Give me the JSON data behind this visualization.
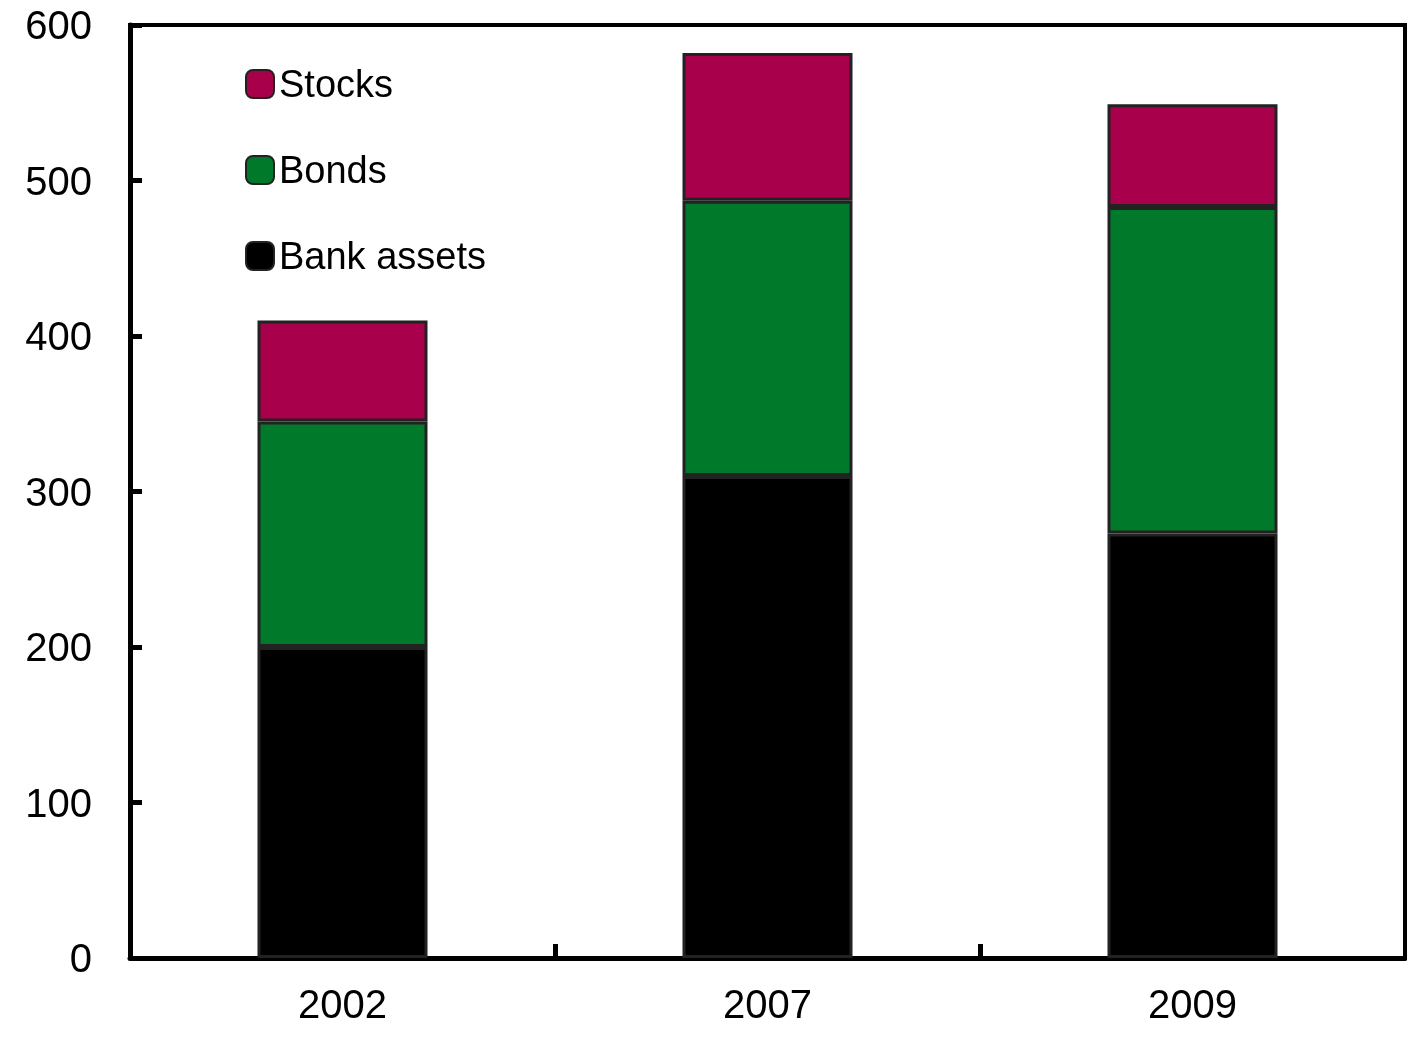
{
  "chart_data": {
    "type": "bar",
    "stacked": true,
    "categories": [
      "2002",
      "2007",
      "2009"
    ],
    "series": [
      {
        "name": "Bank assets",
        "color": "#000000",
        "values": [
          200,
          310,
          273
        ]
      },
      {
        "name": "Bonds",
        "color": "#007a2a",
        "values": [
          145,
          177,
          210
        ]
      },
      {
        "name": "Stocks",
        "color": "#a8004a",
        "values": [
          65,
          95,
          66
        ]
      }
    ],
    "ylim": [
      0,
      600
    ],
    "yticks": [
      0,
      100,
      200,
      300,
      400,
      500,
      600
    ],
    "grid": false,
    "legend": "top left"
  }
}
